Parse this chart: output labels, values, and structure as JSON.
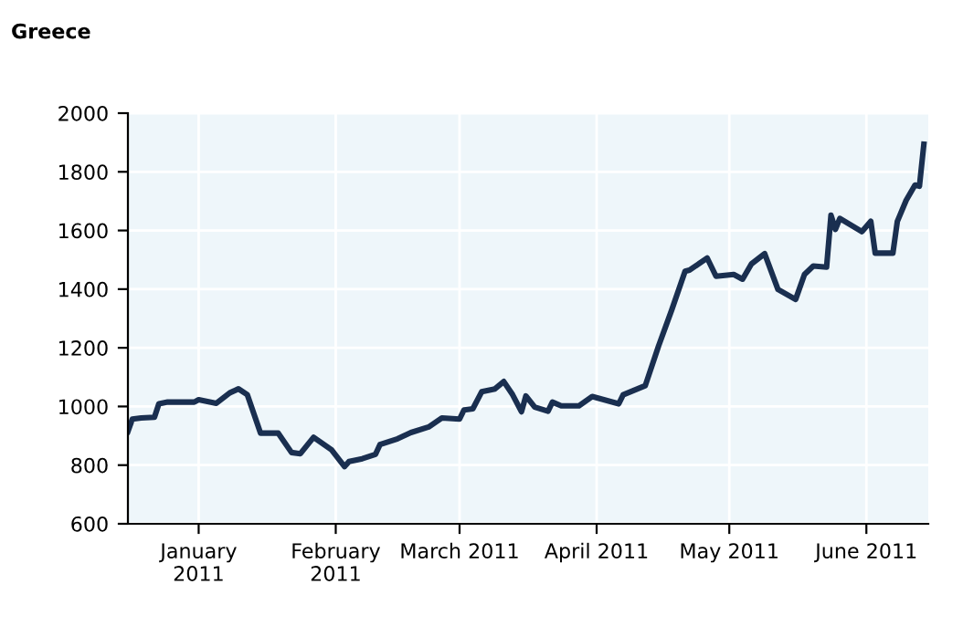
{
  "chart_data": {
    "type": "line",
    "title": "Greece",
    "x": [
      "2010-12-16",
      "2010-12-17",
      "2010-12-19",
      "2010-12-22",
      "2010-12-23",
      "2010-12-25",
      "2010-12-31",
      "2011-01-01",
      "2011-01-05",
      "2011-01-08",
      "2011-01-10",
      "2011-01-12",
      "2011-01-15",
      "2011-01-19",
      "2011-01-22",
      "2011-01-24",
      "2011-01-27",
      "2011-01-31",
      "2011-02-03",
      "2011-02-04",
      "2011-02-07",
      "2011-02-10",
      "2011-02-11",
      "2011-02-15",
      "2011-02-18",
      "2011-02-22",
      "2011-02-25",
      "2011-03-01",
      "2011-03-02",
      "2011-03-04",
      "2011-03-06",
      "2011-03-09",
      "2011-03-11",
      "2011-03-13",
      "2011-03-15",
      "2011-03-16",
      "2011-03-18",
      "2011-03-21",
      "2011-03-22",
      "2011-03-24",
      "2011-03-28",
      "2011-03-31",
      "2011-04-06",
      "2011-04-07",
      "2011-04-12",
      "2011-04-15",
      "2011-04-18",
      "2011-04-21",
      "2011-04-22",
      "2011-04-26",
      "2011-04-28",
      "2011-05-02",
      "2011-05-04",
      "2011-05-06",
      "2011-05-09",
      "2011-05-12",
      "2011-05-16",
      "2011-05-18",
      "2011-05-20",
      "2011-05-23",
      "2011-05-24",
      "2011-05-25",
      "2011-05-26",
      "2011-05-31",
      "2011-06-02",
      "2011-06-03",
      "2011-06-07",
      "2011-06-08",
      "2011-06-10",
      "2011-06-12",
      "2011-06-13",
      "2011-06-14"
    ],
    "series": [
      {
        "color": "#1a2f50",
        "values": [
          915,
          957,
          961,
          963,
          1009,
          1015,
          1015,
          1023,
          1011,
          1046,
          1060,
          1040,
          909,
          909,
          843,
          839,
          895,
          853,
          795,
          812,
          822,
          837,
          870,
          890,
          911,
          930,
          961,
          957,
          988,
          992,
          1050,
          1060,
          1085,
          1040,
          982,
          1036,
          998,
          984,
          1015,
          1002,
          1002,
          1034,
          1009,
          1040,
          1071,
          1206,
          1330,
          1461,
          1465,
          1506,
          1444,
          1450,
          1434,
          1486,
          1521,
          1399,
          1365,
          1450,
          1479,
          1475,
          1652,
          1604,
          1641,
          1596,
          1631,
          1523,
          1523,
          1631,
          1703,
          1755,
          1751,
          1894
        ]
      }
    ],
    "xlim": [
      "2010-12-16",
      "2011-06-15"
    ],
    "xticks": [
      {
        "value": "2011-01-01",
        "label": "January\n2011"
      },
      {
        "value": "2011-02-01",
        "label": "February\n2011"
      },
      {
        "value": "2011-03-01",
        "label": "March 2011"
      },
      {
        "value": "2011-04-01",
        "label": "April 2011"
      },
      {
        "value": "2011-05-01",
        "label": "May 2011"
      },
      {
        "value": "2011-06-01",
        "label": "June 2011"
      }
    ],
    "ylim": [
      600,
      2000
    ],
    "yticks": [
      600,
      800,
      1000,
      1200,
      1400,
      1600,
      1800,
      2000
    ],
    "grid": true,
    "marker": "none",
    "line_style": "solid"
  }
}
